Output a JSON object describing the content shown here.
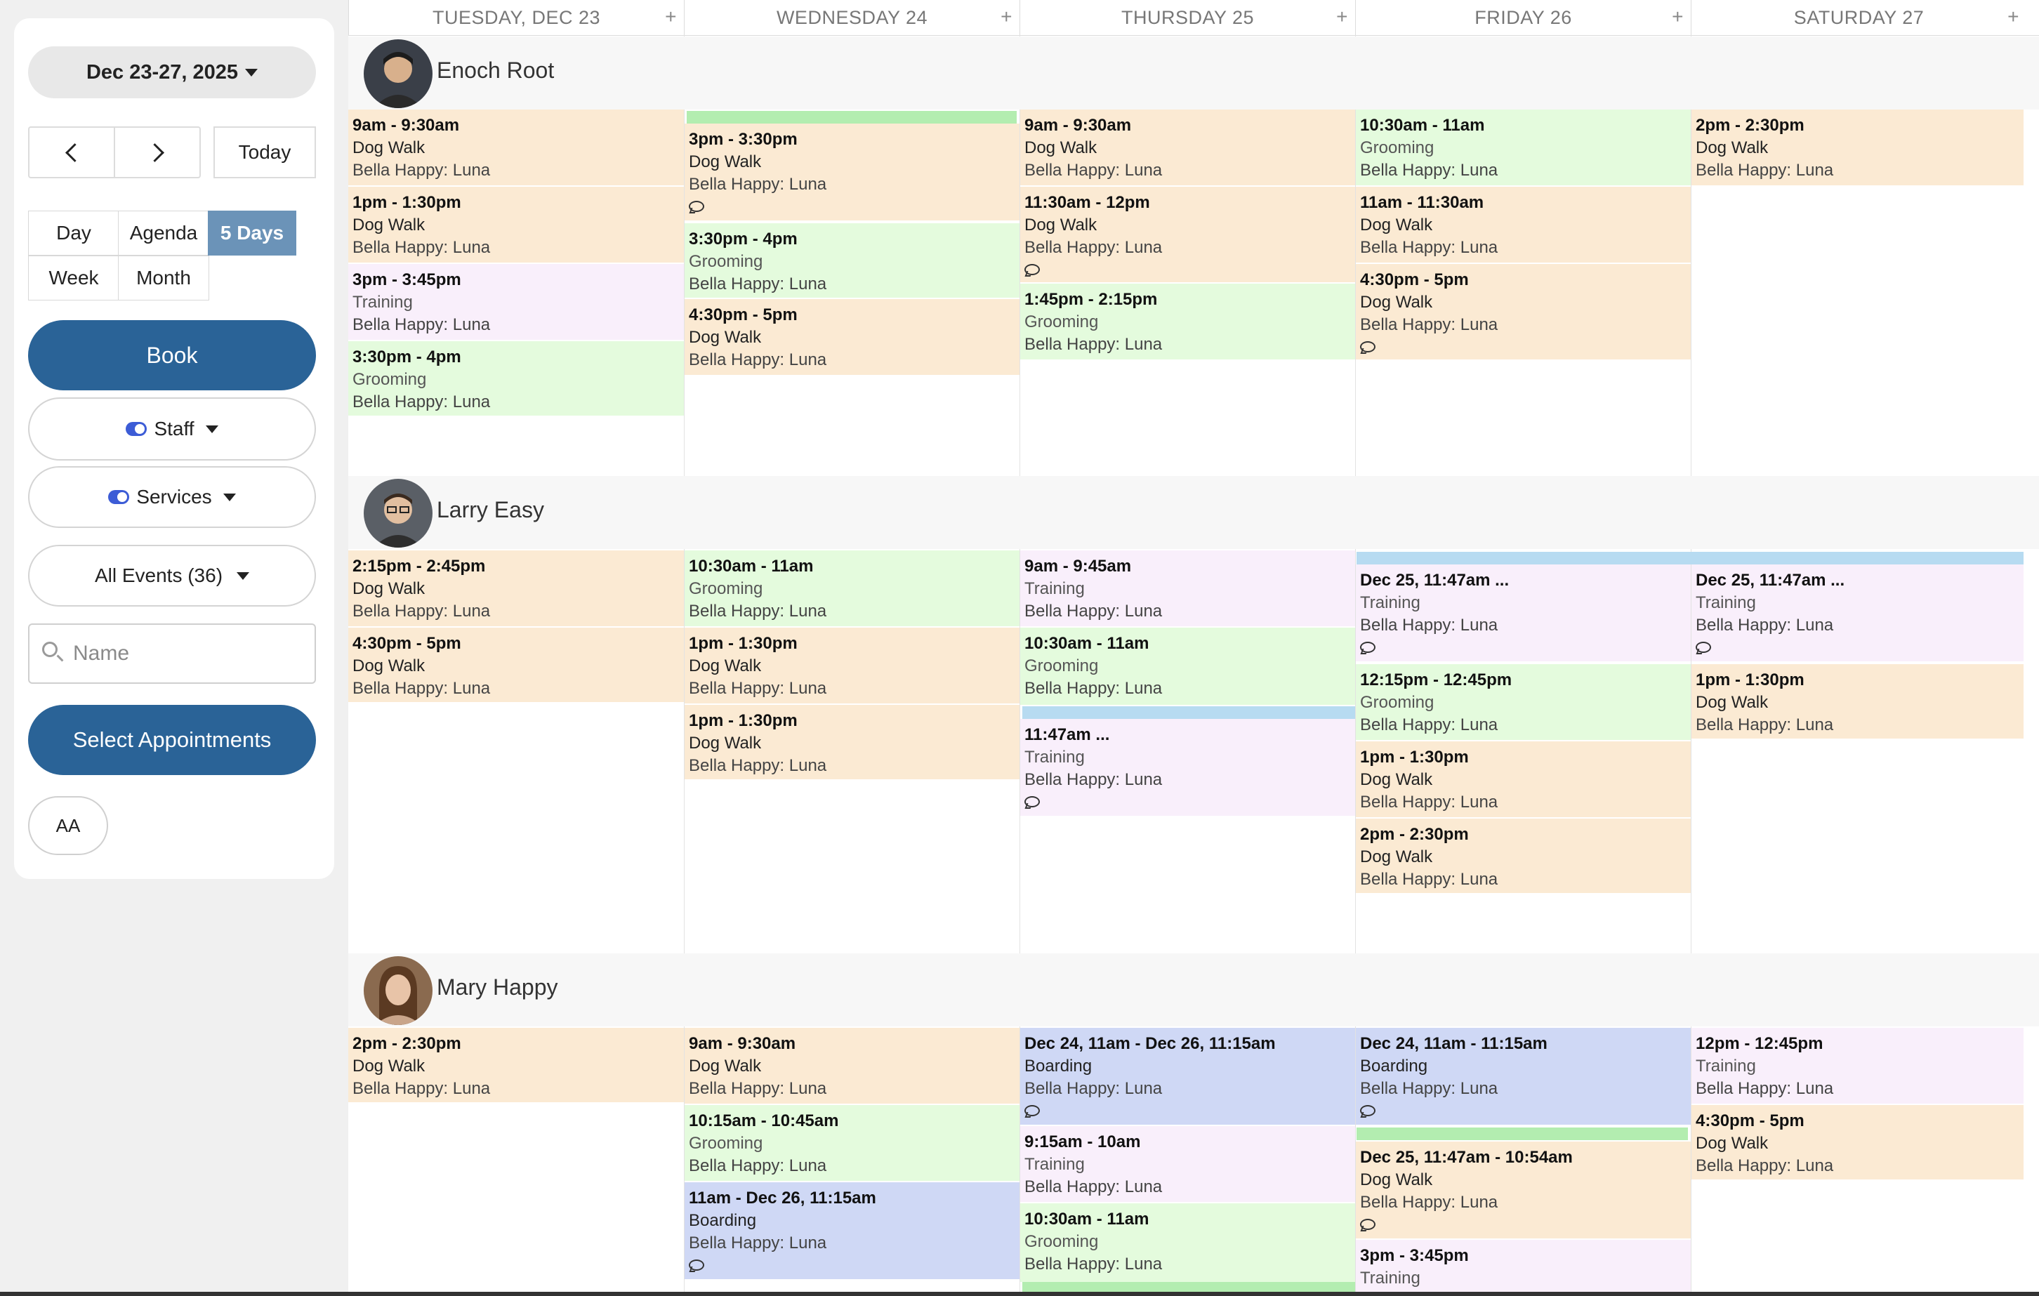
{
  "sidebar": {
    "date_range": "Dec 23-27, 2025",
    "today": "Today",
    "views": {
      "day": "Day",
      "agenda": "Agenda",
      "five_days": "5 Days",
      "week": "Week",
      "month": "Month"
    },
    "book": "Book",
    "staff_filter": "Staff",
    "services_filter": "Services",
    "all_events": "All Events (36)",
    "name_placeholder": "Name",
    "select_appointments": "Select Appointments",
    "font_size_label": "AA"
  },
  "calendar": {
    "days": [
      "TUESDAY, DEC 23",
      "WEDNESDAY 24",
      "THURSDAY 25",
      "FRIDAY 26",
      "SATURDAY 27"
    ],
    "add_label": "+",
    "staff": [
      {
        "name": "Enoch Root"
      },
      {
        "name": "Larry Easy"
      },
      {
        "name": "Mary Happy"
      }
    ],
    "client": "Bella Happy: Luna",
    "events": [
      {
        "time": "9am - 9:30am",
        "service": "Dog Walk"
      },
      {
        "time": "1pm - 1:30pm",
        "service": "Dog Walk"
      },
      {
        "time": "3pm - 3:45pm",
        "service": "Training"
      },
      {
        "time": "3:30pm - 4pm",
        "service": "Grooming"
      },
      {
        "time": "3pm - 3:30pm",
        "service": "Dog Walk"
      },
      {
        "time": "3:30pm - 4pm",
        "service": "Grooming"
      },
      {
        "time": "4:30pm - 5pm",
        "service": "Dog Walk"
      },
      {
        "time": "9am - 9:30am",
        "service": "Dog Walk"
      },
      {
        "time": "11:30am - 12pm",
        "service": "Dog Walk"
      },
      {
        "time": "1:45pm - 2:15pm",
        "service": "Grooming"
      },
      {
        "time": "10:30am - 11am",
        "service": "Grooming"
      },
      {
        "time": "11am - 11:30am",
        "service": "Dog Walk"
      },
      {
        "time": "4:30pm - 5pm",
        "service": "Dog Walk"
      },
      {
        "time": "2pm - 2:30pm",
        "service": "Dog Walk"
      },
      {
        "time": "2:15pm - 2:45pm",
        "service": "Dog Walk"
      },
      {
        "time": "4:30pm - 5pm",
        "service": "Dog Walk"
      },
      {
        "time": "10:30am - 11am",
        "service": "Grooming"
      },
      {
        "time": "1pm - 1:30pm",
        "service": "Dog Walk"
      },
      {
        "time": "1pm - 1:30pm",
        "service": "Dog Walk"
      },
      {
        "time": "9am - 9:45am",
        "service": "Training"
      },
      {
        "time": "10:30am - 11am",
        "service": "Grooming"
      },
      {
        "time": "11:47am ...",
        "service": "Training"
      },
      {
        "time": "Dec 25, 11:47am ...",
        "service": "Training"
      },
      {
        "time": "12:15pm - 12:45pm",
        "service": "Grooming"
      },
      {
        "time": "1pm - 1:30pm",
        "service": "Dog Walk"
      },
      {
        "time": "2pm - 2:30pm",
        "service": "Dog Walk"
      },
      {
        "time": "Dec 25, 11:47am ...",
        "service": "Training"
      },
      {
        "time": "1pm - 1:30pm",
        "service": "Dog Walk"
      },
      {
        "time": "2pm - 2:30pm",
        "service": "Dog Walk"
      },
      {
        "time": "9am - 9:30am",
        "service": "Dog Walk"
      },
      {
        "time": "10:15am - 10:45am",
        "service": "Grooming"
      },
      {
        "time": "11am - Dec 26, 11:15am",
        "service": "Boarding"
      },
      {
        "time": "Dec 24, 11am - Dec 26, 11:15am",
        "service": "Boarding"
      },
      {
        "time": "9:15am - 10am",
        "service": "Training"
      },
      {
        "time": "10:30am - 11am",
        "service": "Grooming"
      },
      {
        "time": "Dec 24, 11am - 11:15am",
        "service": "Boarding"
      },
      {
        "time": "Dec 25, 11:47am - 10:54am",
        "service": "Dog Walk"
      },
      {
        "time": "3pm - 3:45pm",
        "service": "Training"
      },
      {
        "time": "12pm - 12:45pm",
        "service": "Training"
      },
      {
        "time": "4:30pm - 5pm",
        "service": "Dog Walk"
      }
    ]
  },
  "colors": {
    "primary": "#2a6397",
    "active_view": "#6b93b8",
    "dog_walk": "#fbead3",
    "grooming": "#e4fbdd",
    "training": "#f9effb",
    "boarding": "#cfd8f5"
  }
}
